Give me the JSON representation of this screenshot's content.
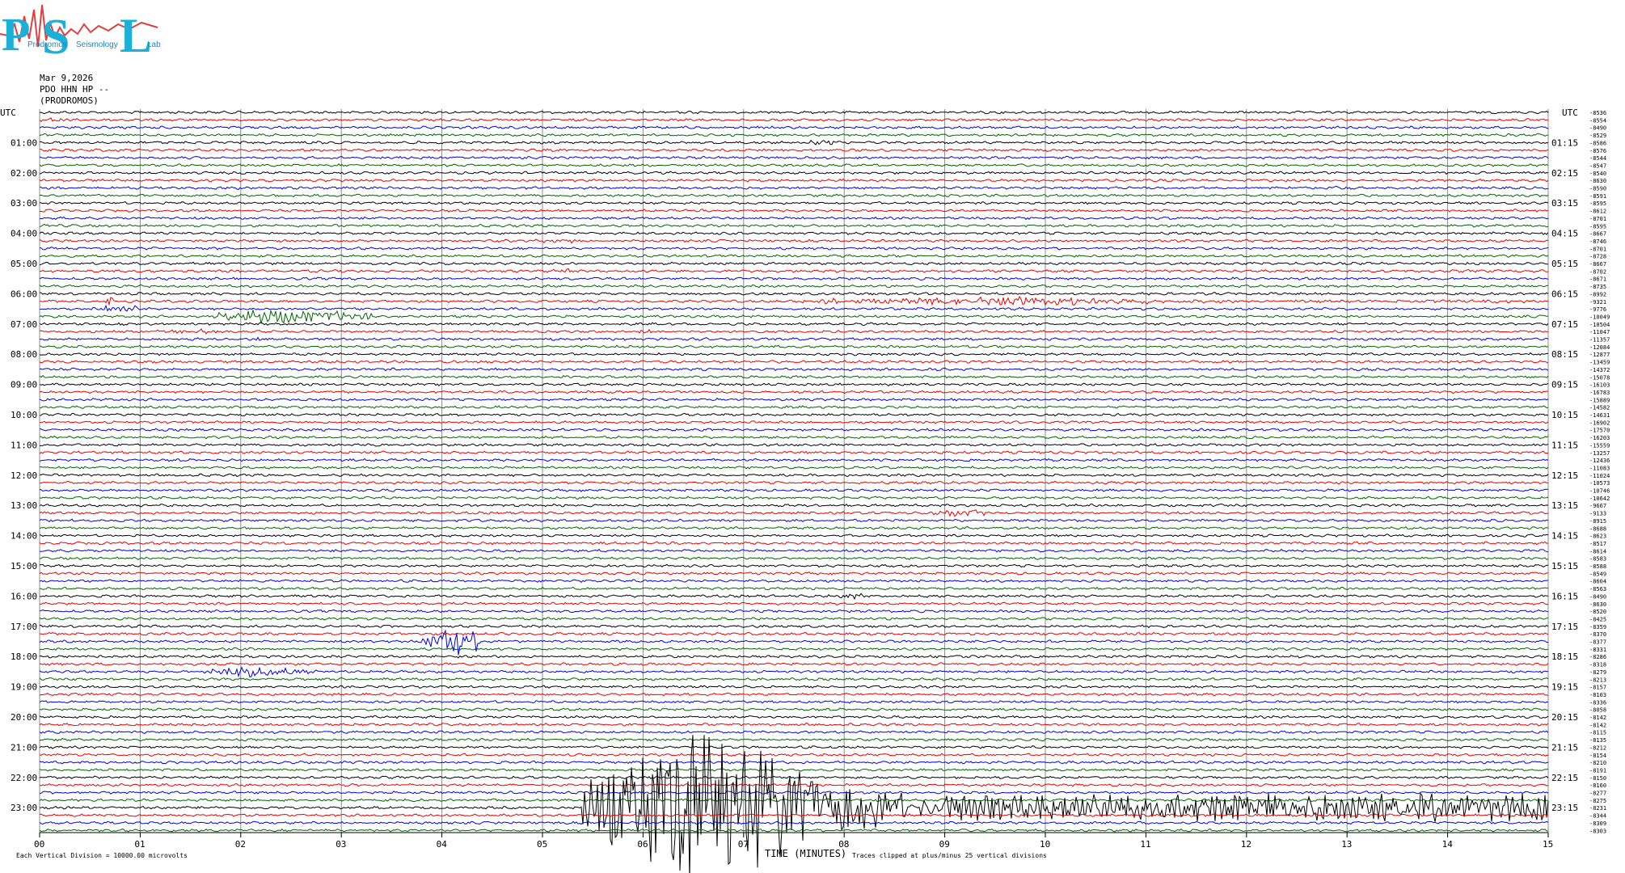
{
  "logo": {
    "letters": [
      "P",
      "S",
      "L"
    ],
    "subtext": [
      "Prodromos",
      "Seismology",
      "Lab"
    ]
  },
  "header": {
    "date": "Mar 9,2026",
    "station": "PDO HHN HP --",
    "location": "(PRODROMOS)"
  },
  "axes": {
    "left_title": "UTC",
    "right_title": "UTC",
    "x_title": "TIME (MINUTES)",
    "x_ticks": [
      "00",
      "01",
      "02",
      "03",
      "04",
      "05",
      "06",
      "07",
      "08",
      "09",
      "10",
      "11",
      "12",
      "13",
      "14",
      "15"
    ]
  },
  "footer": {
    "scale_note": "Each Vertical Division = 10000.00 microvolts",
    "clip_note": "Traces clipped at plus/minus 25 vertical divisions"
  },
  "colors": {
    "cycle": [
      "#000000",
      "#e80000",
      "#0000e0",
      "#006400"
    ],
    "grid": "#8c8c8c"
  },
  "chart_data": {
    "type": "helicorder",
    "minutes_per_line": 15,
    "lines_per_hour": 4,
    "x_range_minutes": [
      0,
      15
    ],
    "hour_labels_left": [
      "01:00",
      "02:00",
      "03:00",
      "04:00",
      "05:00",
      "06:00",
      "07:00",
      "08:00",
      "09:00",
      "10:00",
      "11:00",
      "12:00",
      "13:00",
      "14:00",
      "15:00",
      "16:00",
      "17:00",
      "18:00",
      "19:00",
      "20:00",
      "21:00",
      "22:00",
      "23:00"
    ],
    "hour_labels_right": [
      "01:15",
      "02:15",
      "03:15",
      "04:15",
      "05:15",
      "06:15",
      "07:15",
      "08:15",
      "09:15",
      "10:15",
      "11:15",
      "12:15",
      "13:15",
      "14:15",
      "15:15",
      "16:15",
      "17:15",
      "18:15",
      "19:15",
      "20:15",
      "21:15",
      "22:15",
      "23:15"
    ],
    "line_offsets": [
      "-8536",
      "-8554",
      "-8490",
      "-8529",
      "-8586",
      "-8576",
      "-8544",
      "-8547",
      "-8540",
      "-8630",
      "-8590",
      "-8591",
      "-8595",
      "-8612",
      "-8701",
      "-8595",
      "-8667",
      "-8746",
      "-8701",
      "-8728",
      "-8667",
      "-8702",
      "-8671",
      "-8735",
      "-8992",
      "-9321",
      "-9776",
      "-10049",
      "-10504",
      "-11047",
      "-11357",
      "-12084",
      "-12877",
      "-13459",
      "-14372",
      "-15078",
      "-16103",
      "-16783",
      "-15889",
      "-14582",
      "-14631",
      "-16902",
      "-17570",
      "-16203",
      "-15559",
      "-13257",
      "-12436",
      "-11083",
      "-11024",
      "-10573",
      "-10746",
      "-10642",
      "-9667",
      "-9133",
      "-8915",
      "-8688",
      "-8623",
      "-8517",
      "-8614",
      "-8583",
      "-8588",
      "-8549",
      "-8604",
      "-8563",
      "-8490",
      "-8630",
      "-8520",
      "-8425",
      "-8359",
      "-8370",
      "-8377",
      "-8331",
      "-8286",
      "-8318",
      "-8279",
      "-8213",
      "-8157",
      "-8103",
      "-8336",
      "-8058",
      "-8142",
      "-8142",
      "-8115",
      "-8135",
      "-8212",
      "-8154",
      "-8210",
      "-8191",
      "-8150",
      "-8160",
      "-8277",
      "-8275",
      "-8231",
      "-8344",
      "-8309",
      "-8303"
    ],
    "events": [
      {
        "line": 1,
        "minute": 0.0,
        "duration": 0.3,
        "amp": 0.5
      },
      {
        "line": 4,
        "minute": 7.5,
        "duration": 0.6,
        "amp": 0.5
      },
      {
        "line": 10,
        "minute": 1.6,
        "duration": 0.4,
        "amp": 0.4
      },
      {
        "line": 10,
        "minute": 12.7,
        "duration": 0.4,
        "amp": 0.4
      },
      {
        "line": 17,
        "minute": 4.9,
        "duration": 0.5,
        "amp": 0.5
      },
      {
        "line": 21,
        "minute": 5.1,
        "duration": 0.2,
        "amp": 0.7
      },
      {
        "line": 25,
        "minute": 0.6,
        "duration": 0.15,
        "amp": 1.2
      },
      {
        "line": 25,
        "minute": 7.5,
        "duration": 7.5,
        "amp": 1.2,
        "peak": 9.8
      },
      {
        "line": 26,
        "minute": 0.5,
        "duration": 0.5,
        "amp": 0.8
      },
      {
        "line": 27,
        "minute": 1.7,
        "duration": 1.6,
        "amp": 2.2,
        "peak": 2.2
      },
      {
        "line": 29,
        "minute": 1.0,
        "duration": 0.8,
        "amp": 0.5
      },
      {
        "line": 29,
        "minute": 5.8,
        "duration": 0.5,
        "amp": 0.4
      },
      {
        "line": 30,
        "minute": 2.0,
        "duration": 0.3,
        "amp": 0.4
      },
      {
        "line": 53,
        "minute": 8.8,
        "duration": 0.6,
        "amp": 0.9
      },
      {
        "line": 64,
        "minute": 7.8,
        "duration": 0.4,
        "amp": 0.6
      },
      {
        "line": 70,
        "minute": 3.8,
        "duration": 0.6,
        "amp": 3.5,
        "peak": 4.1
      },
      {
        "line": 74,
        "minute": 1.6,
        "duration": 1.2,
        "amp": 1.5,
        "peak": 2.0
      },
      {
        "line": 92,
        "minute": 5.4,
        "duration": 9.6,
        "amp": 25,
        "peak": 6.6
      }
    ]
  }
}
